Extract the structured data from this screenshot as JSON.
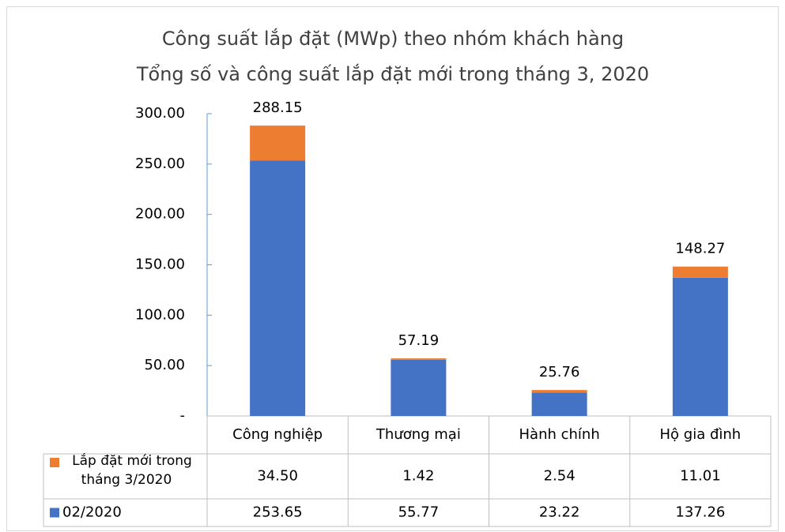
{
  "chart_data": {
    "type": "bar",
    "stacked": true,
    "title": "Công suất lắp đặt (MWp) theo nhóm khách hàng",
    "subtitle": "Tổng số và công suất lắp đặt mới trong tháng 3, 2020",
    "categories": [
      "Công nghiệp",
      "Thương mại",
      "Hành chính",
      "Hộ gia đình"
    ],
    "series": [
      {
        "name": "02/2020",
        "color": "#4472c4",
        "values": [
          253.65,
          55.77,
          23.22,
          137.26
        ]
      },
      {
        "name": "Lắp đặt mới trong tháng 3/2020",
        "color": "#ed7d31",
        "values": [
          34.5,
          1.42,
          2.54,
          11.01
        ],
        "value_labels": [
          "34.50",
          "1.42",
          "2.54",
          "11.01"
        ]
      }
    ],
    "totals": [
      288.15,
      57.19,
      25.76,
      148.27
    ],
    "ylim": [
      0,
      300
    ],
    "yticks": [
      {
        "value": 0,
        "label": "-"
      },
      {
        "value": 50,
        "label": "50.00"
      },
      {
        "value": 100,
        "label": "100.00"
      },
      {
        "value": 150,
        "label": "150.00"
      },
      {
        "value": 200,
        "label": "200.00"
      },
      {
        "value": 250,
        "label": "250.00"
      },
      {
        "value": 300,
        "label": "300.00"
      }
    ],
    "grid": false
  }
}
